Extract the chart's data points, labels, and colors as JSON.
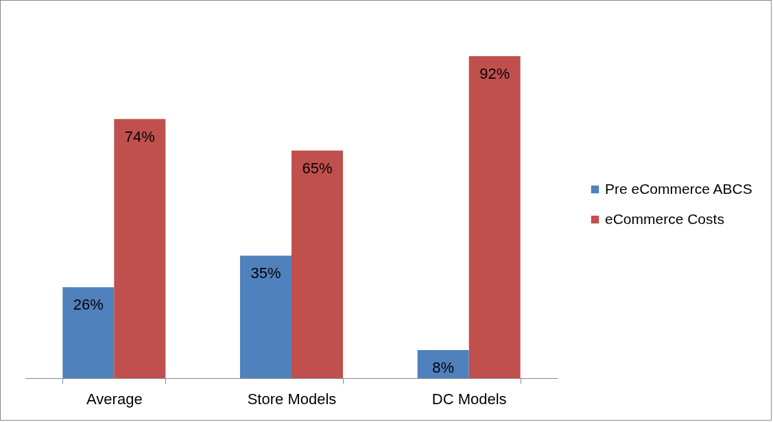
{
  "chart_data": {
    "type": "bar",
    "categories": [
      "Average",
      "Store Models",
      "DC Models"
    ],
    "series": [
      {
        "name": "Pre eCommerce ABCS",
        "color": "#4f81bd",
        "values": [
          26,
          35,
          8
        ],
        "value_labels": [
          "26%",
          "35%",
          "8%"
        ]
      },
      {
        "name": "eCommerce Costs",
        "color": "#c0504d",
        "values": [
          74,
          65,
          92
        ],
        "value_labels": [
          "74%",
          "65%",
          "92%"
        ]
      }
    ],
    "legend": "right"
  }
}
